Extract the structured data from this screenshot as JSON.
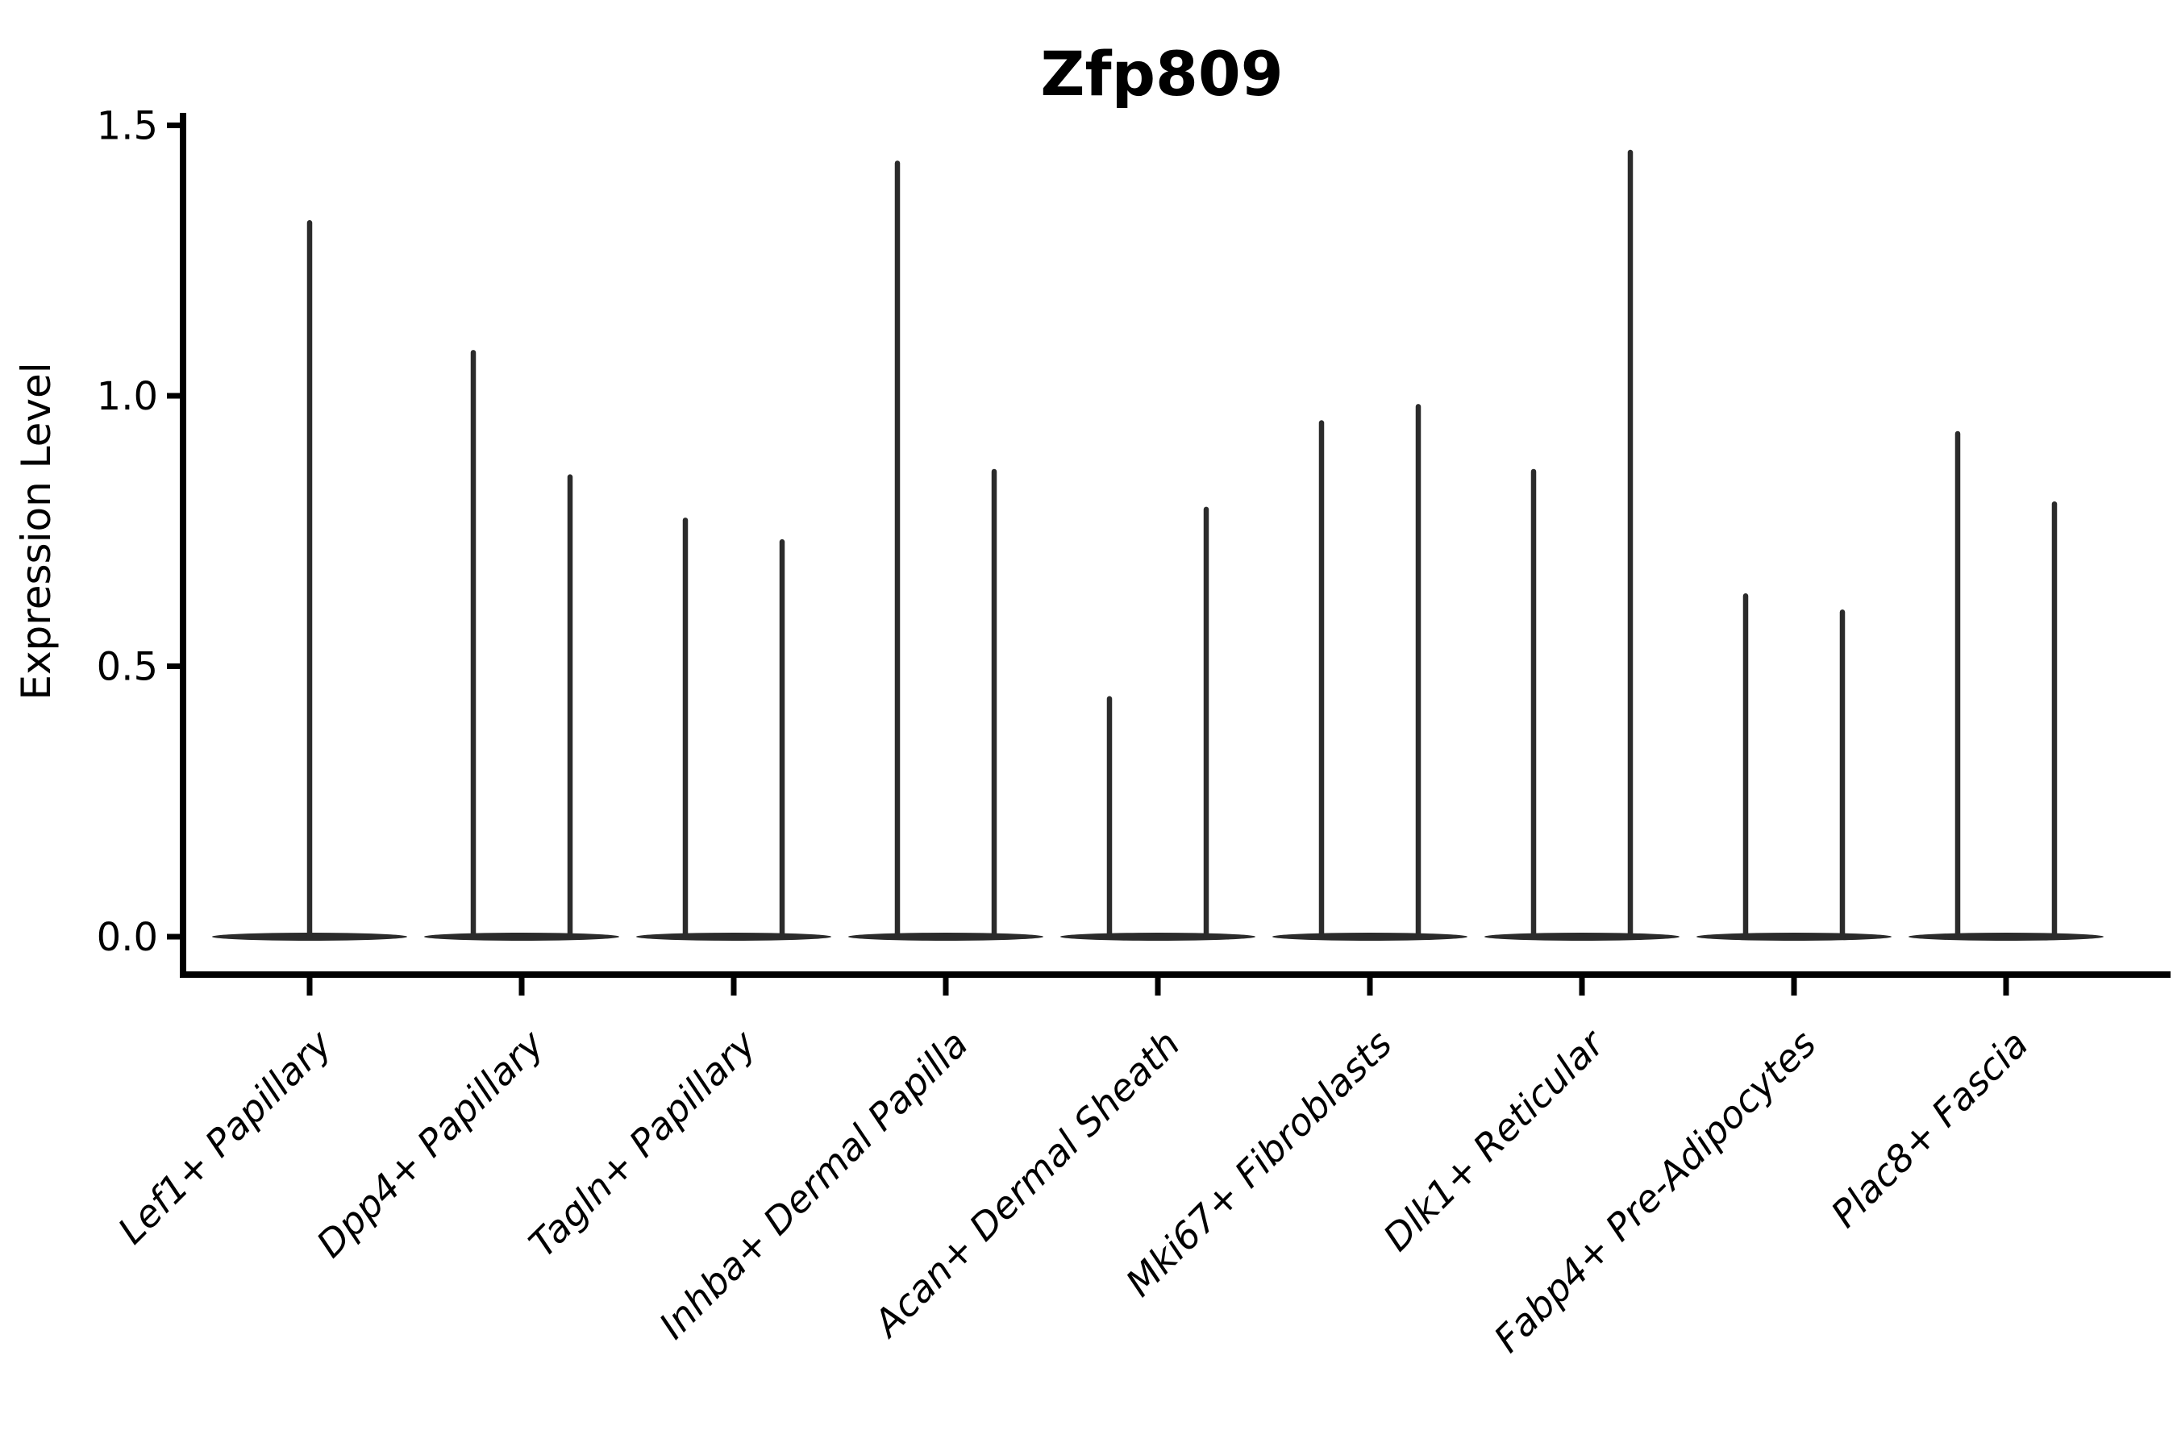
{
  "title": "Zfp809",
  "ylabel": "Expression Level",
  "colors": {
    "axis": "#000000",
    "violin": "#2b2b2b",
    "text": "#000000",
    "background": "#ffffff"
  },
  "chart_data": {
    "type": "violin",
    "title": "Zfp809",
    "xlabel": "",
    "ylabel": "Expression Level",
    "ylim": [
      0,
      1.5
    ],
    "yticks": [
      0.0,
      0.5,
      1.0,
      1.5
    ],
    "grid": false,
    "legend": "none",
    "x_tick_label_rotation": 45,
    "x_tick_label_style": "italic",
    "categories": [
      "Lef1+ Papillary",
      "Dpp4+ Papillary",
      "Tagln+ Papillary",
      "Inhba+ Dermal Papilla",
      "Acan+ Dermal Sheath",
      "Mki67+ Fibroblasts",
      "Dlk1+ Reticular",
      "Fabp4+ Pre-Adipocytes",
      "Plac8+ Fascia"
    ],
    "description": "Thin spike-shaped violins of Expression Level per cluster; most cells at 0 (wide flat base at y=0), with a narrow spike up to the max expression. All categories except the first contain two violins side by side; the first has a single centered violin.",
    "violin_max_values": [
      [
        1.32
      ],
      [
        1.08,
        0.85
      ],
      [
        0.77,
        0.73
      ],
      [
        1.43,
        0.86
      ],
      [
        0.44,
        0.79
      ],
      [
        0.95,
        0.98
      ],
      [
        0.86,
        1.45
      ],
      [
        0.63,
        0.6
      ],
      [
        0.93,
        0.8
      ]
    ]
  }
}
